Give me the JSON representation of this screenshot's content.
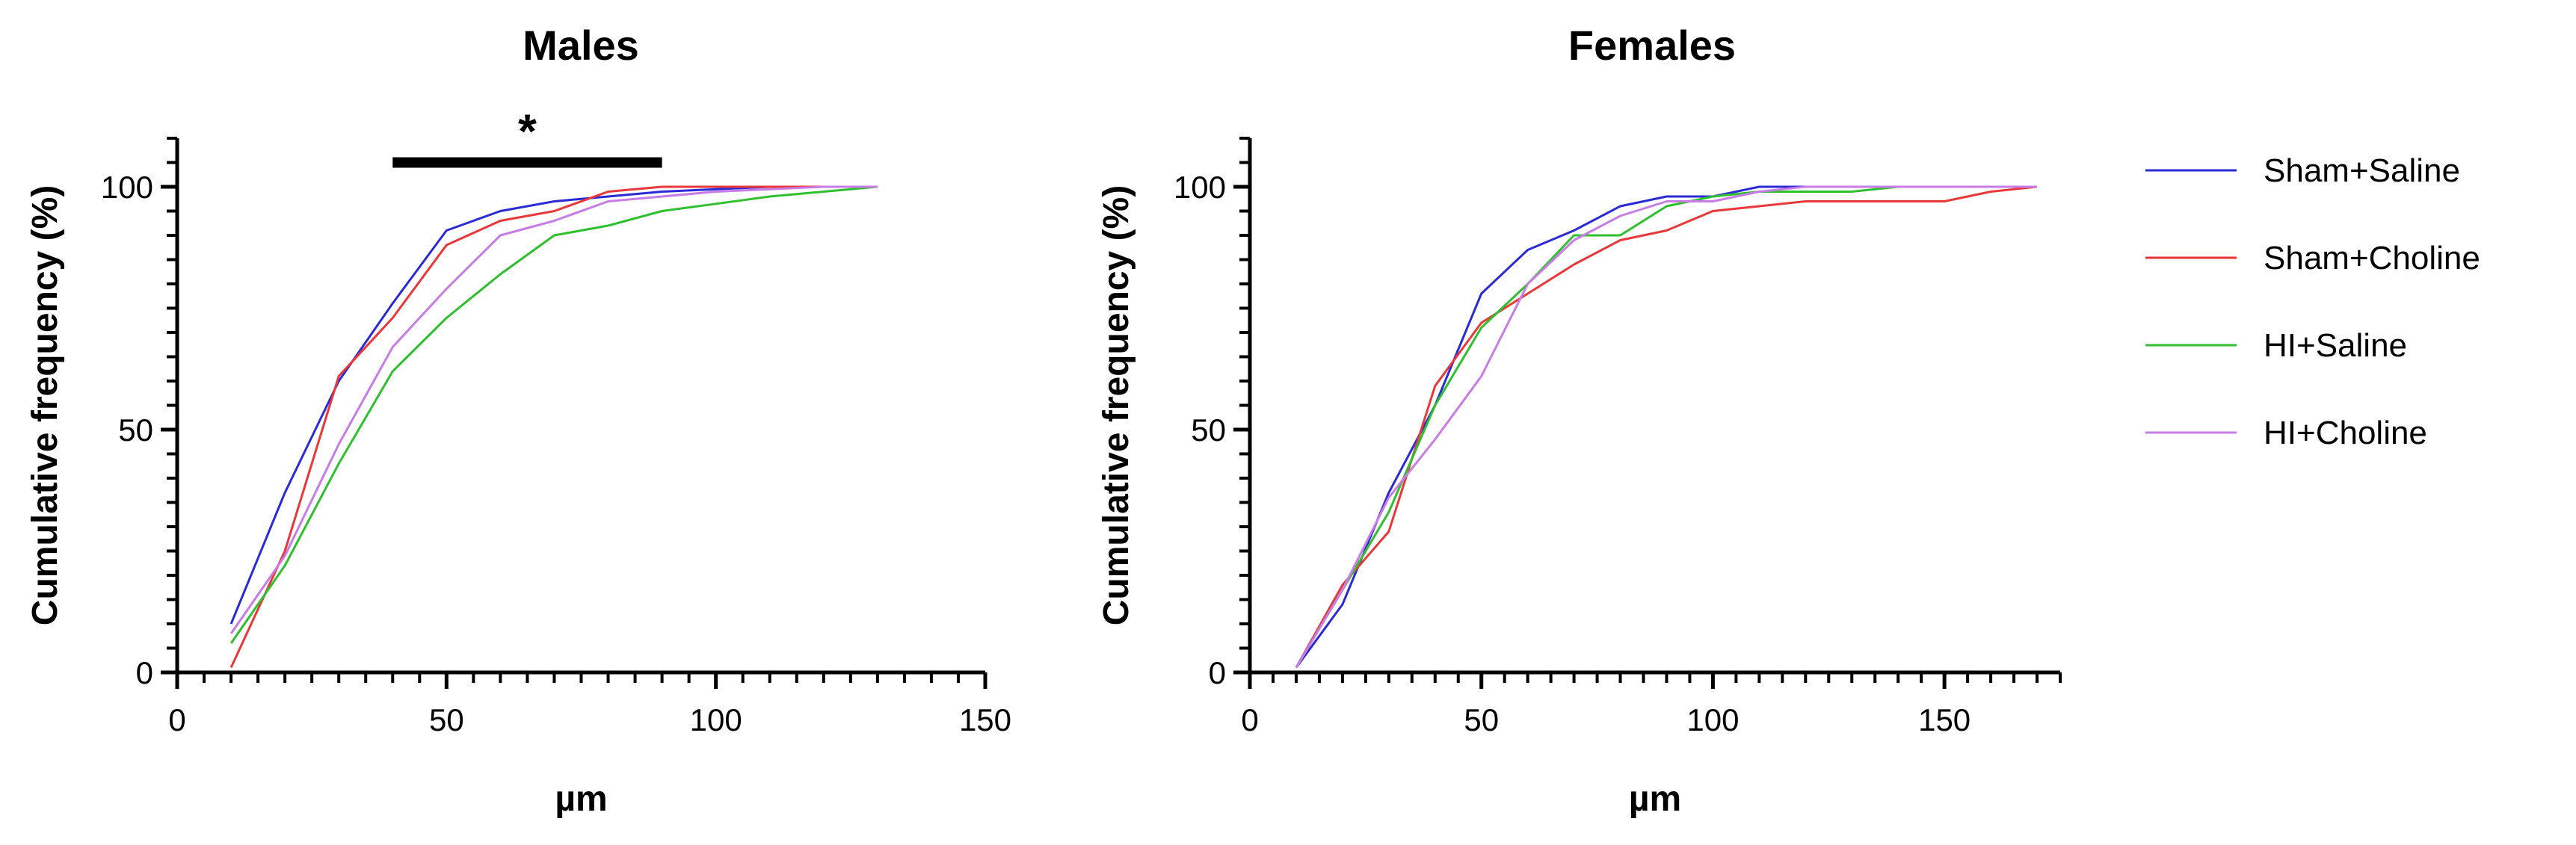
{
  "chart_data": [
    {
      "type": "line",
      "title": "Males",
      "xlabel": "µm",
      "ylabel": "Cumulative frequency (%)",
      "xlim": [
        0,
        150
      ],
      "ylim": [
        0,
        110
      ],
      "x_ticks": [
        0,
        50,
        100,
        150
      ],
      "y_ticks": [
        0,
        50,
        100
      ],
      "x_minor_step": 5,
      "y_minor_step": 5,
      "annotation": {
        "text": "*",
        "x_range": [
          40,
          90
        ],
        "y": 105
      },
      "series": [
        {
          "name": "Sham+Saline",
          "color": "#2b2bd6",
          "x": [
            10,
            20,
            30,
            40,
            50,
            60,
            70,
            80,
            90,
            100,
            110,
            120,
            130
          ],
          "y": [
            10,
            37,
            60,
            76,
            91,
            95,
            97,
            98,
            99,
            99.5,
            100,
            100,
            100
          ]
        },
        {
          "name": "Sham+Choline",
          "color": "#e8383a",
          "x": [
            10,
            20,
            30,
            40,
            50,
            60,
            70,
            80,
            90,
            100,
            110,
            120,
            130
          ],
          "y": [
            1,
            25,
            61,
            73,
            88,
            93,
            95,
            99,
            100,
            100,
            100,
            100,
            100
          ]
        },
        {
          "name": "HI+Saline",
          "color": "#2fbf2f",
          "x": [
            10,
            20,
            30,
            40,
            50,
            60,
            70,
            80,
            90,
            100,
            110,
            120,
            130
          ],
          "y": [
            6,
            22,
            43,
            62,
            73,
            82,
            90,
            92,
            95,
            96.5,
            98,
            99,
            100
          ]
        },
        {
          "name": "HI+Choline",
          "color": "#c77ce6",
          "x": [
            10,
            20,
            30,
            40,
            50,
            60,
            70,
            80,
            90,
            100,
            110,
            120,
            130
          ],
          "y": [
            8,
            24,
            47,
            67,
            79,
            90,
            93,
            97,
            98,
            99,
            99.5,
            100,
            100
          ]
        }
      ]
    },
    {
      "type": "line",
      "title": "Females",
      "xlabel": "µm",
      "ylabel": "Cumulative frequency (%)",
      "xlim": [
        0,
        175
      ],
      "ylim": [
        0,
        110
      ],
      "x_ticks": [
        0,
        50,
        100,
        150
      ],
      "y_ticks": [
        0,
        50,
        100
      ],
      "x_minor_step": 5,
      "y_minor_step": 5,
      "series": [
        {
          "name": "Sham+Saline",
          "color": "#2b2bd6",
          "x": [
            10,
            20,
            30,
            40,
            50,
            60,
            70,
            80,
            90,
            100,
            110,
            120,
            130,
            140,
            150,
            160,
            170
          ],
          "y": [
            1,
            14,
            37,
            55,
            78,
            87,
            91,
            96,
            98,
            98,
            100,
            100,
            100,
            100,
            100,
            100,
            100
          ]
        },
        {
          "name": "Sham+Choline",
          "color": "#e8383a",
          "x": [
            10,
            20,
            30,
            40,
            50,
            60,
            70,
            80,
            90,
            100,
            110,
            120,
            130,
            140,
            150,
            160,
            170
          ],
          "y": [
            1,
            18,
            29,
            59,
            72,
            78,
            84,
            89,
            91,
            95,
            96,
            97,
            97,
            97,
            97,
            99,
            100
          ]
        },
        {
          "name": "HI+Saline",
          "color": "#2fbf2f",
          "x": [
            10,
            20,
            30,
            40,
            50,
            60,
            70,
            80,
            90,
            100,
            110,
            120,
            130,
            140,
            150,
            160,
            170
          ],
          "y": [
            1,
            17,
            33,
            55,
            71,
            80,
            90,
            90,
            96,
            98,
            99,
            99,
            99,
            100,
            100,
            100,
            100
          ]
        },
        {
          "name": "HI+Choline",
          "color": "#c77ce6",
          "x": [
            10,
            20,
            30,
            40,
            50,
            60,
            70,
            80,
            90,
            100,
            110,
            120,
            130,
            140,
            150,
            160,
            170
          ],
          "y": [
            1,
            17,
            36,
            48,
            61,
            80,
            89,
            94,
            97,
            97,
            99,
            100,
            100,
            100,
            100,
            100,
            100
          ]
        }
      ]
    }
  ],
  "legend": {
    "placement": "right",
    "items": [
      {
        "label": "Sham+Saline",
        "color": "#2b2bd6"
      },
      {
        "label": "Sham+Choline",
        "color": "#e8383a"
      },
      {
        "label": "HI+Saline",
        "color": "#2fbf2f"
      },
      {
        "label": "HI+Choline",
        "color": "#c77ce6"
      }
    ]
  }
}
